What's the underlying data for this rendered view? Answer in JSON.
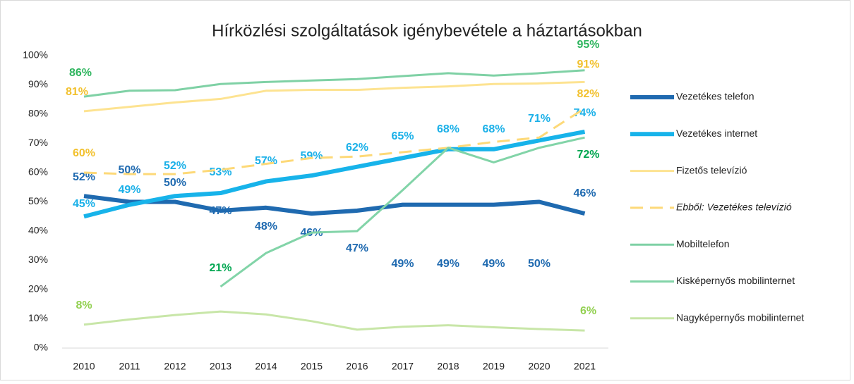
{
  "chart_data": {
    "type": "line",
    "title": "Hírközlési szolgáltatások igénybevétele a háztartásokban",
    "categories": [
      "2010",
      "2011",
      "2012",
      "2013",
      "2014",
      "2015",
      "2016",
      "2017",
      "2018",
      "2019",
      "2020",
      "2021"
    ],
    "ylim": [
      0,
      100
    ],
    "yticks": [
      {
        "value": 0,
        "label": "0%"
      },
      {
        "value": 10,
        "label": "10%"
      },
      {
        "value": 20,
        "label": "20%"
      },
      {
        "value": 30,
        "label": "30%"
      },
      {
        "value": 40,
        "label": "40%"
      },
      {
        "value": 50,
        "label": "50%"
      },
      {
        "value": 60,
        "label": "60%"
      },
      {
        "value": 70,
        "label": "70%"
      },
      {
        "value": 80,
        "label": "80%"
      },
      {
        "value": 90,
        "label": "90%"
      },
      {
        "value": 100,
        "label": "100%"
      }
    ],
    "legend": "right",
    "series": [
      {
        "name": "Vezetékes telefon",
        "color": "#1f6ab0",
        "label_color": "#1f6ab0",
        "width": 6,
        "values": [
          52,
          50,
          50,
          47,
          48,
          46,
          47,
          49,
          49,
          49,
          50,
          46
        ],
        "value_labels": [
          "52%",
          "50%",
          "50%",
          "47%",
          "48%",
          "46%",
          "47%",
          "49%",
          "49%",
          "49%",
          "50%",
          "46%"
        ]
      },
      {
        "name": "Vezetékes internet",
        "color": "#17b3ea",
        "label_color": "#1ab0e8",
        "width": 6,
        "values": [
          45,
          49,
          52,
          53,
          57,
          59,
          62,
          65,
          68,
          68,
          71,
          74
        ],
        "value_labels": [
          "45%",
          "49%",
          "52%",
          "53%",
          "57%",
          "59%",
          "62%",
          "65%",
          "68%",
          "68%",
          "71%",
          "74%"
        ]
      },
      {
        "name": "Fizetős televízió",
        "color": "#fde391",
        "label_color": "#f2c12e",
        "width": 3,
        "values": [
          81,
          82.5,
          84,
          85.2,
          88,
          88.3,
          88.3,
          89,
          89.5,
          90.3,
          90.5,
          91
        ],
        "value_labels": [
          "81%",
          null,
          null,
          null,
          null,
          null,
          null,
          null,
          null,
          null,
          null,
          "91%"
        ]
      },
      {
        "name": "Ebből: Vezetékes televízió",
        "color": "#fdd978",
        "label_color": "#f2c12e",
        "width": 3,
        "dashed": true,
        "values": [
          60,
          59.5,
          59.5,
          61,
          63,
          65,
          65.5,
          67,
          68.5,
          70.5,
          72,
          82
        ],
        "value_labels": [
          "60%",
          null,
          null,
          null,
          null,
          null,
          null,
          null,
          null,
          null,
          null,
          "82%"
        ]
      },
      {
        "name": "Mobiltelefon",
        "color": "#7fd1a5",
        "label_color": "#2eb55e",
        "width": 3,
        "values": [
          86,
          88,
          88.2,
          90.3,
          91,
          91.5,
          92,
          93,
          94,
          93.2,
          94,
          95
        ],
        "value_labels": [
          "86%",
          null,
          null,
          null,
          null,
          null,
          null,
          null,
          null,
          null,
          null,
          "95%"
        ]
      },
      {
        "name": "Kisképernyős mobilinternet",
        "color": "#82d4a8",
        "label_color": "#00a650",
        "width": 3,
        "values": [
          null,
          null,
          null,
          21,
          32.5,
          39.5,
          40,
          54,
          68.5,
          63.5,
          68.5,
          72
        ],
        "value_labels": [
          null,
          null,
          null,
          "21%",
          null,
          null,
          null,
          null,
          null,
          null,
          null,
          "72%"
        ]
      },
      {
        "name": "Nagyképernyős mobilinternet",
        "color": "#c8e6a8",
        "label_color": "#92d050",
        "width": 3,
        "values": [
          8,
          9.8,
          11.3,
          12.5,
          11.5,
          9.2,
          6.3,
          7.3,
          7.8,
          7.1,
          6.5,
          6
        ],
        "value_labels": [
          "8%",
          null,
          null,
          null,
          null,
          null,
          null,
          null,
          null,
          null,
          null,
          "6%"
        ]
      }
    ]
  }
}
